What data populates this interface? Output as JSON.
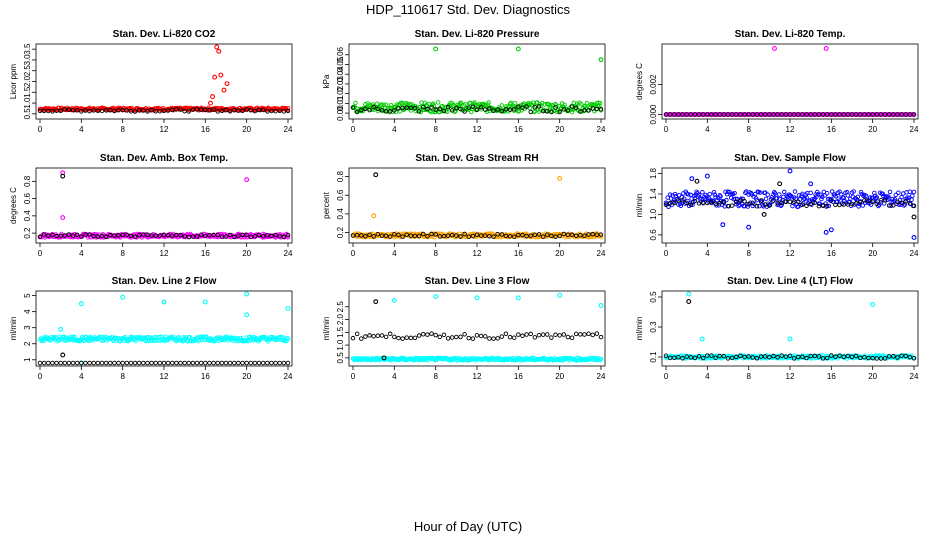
{
  "title": "HDP_110617  Std. Dev. Diagnostics",
  "xlabel": "Hour of Day (UTC)",
  "chart_data": [
    {
      "type": "scatter",
      "title": "Stan. Dev. Li-820 CO2",
      "ylabel": "Licor ppm",
      "xlim": [
        0,
        24
      ],
      "ylim": [
        0.4,
        3.6
      ],
      "xticks": [
        0,
        4,
        8,
        12,
        16,
        20,
        24
      ],
      "yticks": [
        "0.5",
        "1.0",
        "1.5",
        "2.0",
        "2.5",
        "3.0",
        "3.5"
      ],
      "series": [
        {
          "color": "#ff0000",
          "pattern": {
            "base": 0.72,
            "amp": 0.06
          },
          "x": [
            16.5,
            16.7,
            16.9,
            17.1,
            17.3,
            17.5,
            17.8,
            18.1
          ],
          "y": [
            1.0,
            1.3,
            2.2,
            3.6,
            3.4,
            2.3,
            1.6,
            1.9
          ]
        },
        {
          "color": "#000000",
          "pattern": {
            "base": 0.66,
            "amp": 0.05
          },
          "x": [],
          "y": []
        }
      ]
    },
    {
      "type": "scatter",
      "title": "Stan. Dev. Li-820 Pressure",
      "ylabel": "kPa",
      "xlim": [
        0,
        24
      ],
      "ylim": [
        -0.003,
        0.068
      ],
      "xticks": [
        0,
        4,
        8,
        12,
        16,
        20,
        24
      ],
      "yticks": [
        "0.00",
        "0.01",
        "0.02",
        "0.03",
        "0.04",
        "0.05",
        "0.06"
      ],
      "series": [
        {
          "color": "#00cc00",
          "pattern": {
            "base": 0.006,
            "amp": 0.005
          },
          "x": [
            8,
            16,
            24
          ],
          "y": [
            0.066,
            0.066,
            0.055
          ]
        },
        {
          "color": "#000000",
          "pattern": {
            "base": 0.004,
            "amp": 0.003
          },
          "x": [],
          "y": []
        }
      ]
    },
    {
      "type": "scatter",
      "title": "Stan. Dev. Li-820 Temp.",
      "ylabel": "degrees C",
      "xlim": [
        0,
        24
      ],
      "ylim": [
        -0.0001,
        0.0045
      ],
      "xticks": [
        0,
        4,
        8,
        12,
        16,
        20,
        24
      ],
      "yticks": [
        "0.000",
        "0.002"
      ],
      "series": [
        {
          "color": "#ff00ff",
          "pattern": {
            "base": 0.0,
            "amp": 0.0
          },
          "x": [
            10.5,
            15.5
          ],
          "y": [
            0.0044,
            0.0044
          ]
        },
        {
          "color": "#000000",
          "pattern": {
            "base": 0.0,
            "amp": 0.0
          },
          "x": [],
          "y": []
        }
      ]
    },
    {
      "type": "scatter",
      "title": "Stan. Dev. Amb. Box Temp.",
      "ylabel": "degrees C",
      "xlim": [
        0,
        24
      ],
      "ylim": [
        0.12,
        0.92
      ],
      "xticks": [
        0,
        4,
        8,
        12,
        16,
        20,
        24
      ],
      "yticks": [
        "0.2",
        "0.4",
        "0.6",
        "0.8"
      ],
      "series": [
        {
          "color": "#ff00ff",
          "pattern": {
            "base": 0.17,
            "amp": 0.02
          },
          "x": [
            2.2,
            2.2,
            20.0
          ],
          "y": [
            0.9,
            0.38,
            0.82
          ]
        },
        {
          "color": "#000000",
          "pattern": {
            "base": 0.17,
            "amp": 0.015
          },
          "x": [
            2.2
          ],
          "y": [
            0.86
          ]
        }
      ]
    },
    {
      "type": "scatter",
      "title": "Stan. Dev. Gas Stream RH",
      "ylabel": "percent",
      "xlim": [
        0,
        24
      ],
      "ylim": [
        0.12,
        0.86
      ],
      "xticks": [
        0,
        4,
        8,
        12,
        16,
        20,
        24
      ],
      "yticks": [
        "0.2",
        "0.4",
        "0.6",
        "0.8"
      ],
      "series": [
        {
          "color": "#ffa500",
          "pattern": {
            "base": 0.17,
            "amp": 0.02
          },
          "x": [
            2.0,
            20.0
          ],
          "y": [
            0.38,
            0.78
          ]
        },
        {
          "color": "#000000",
          "pattern": {
            "base": 0.17,
            "amp": 0.015
          },
          "x": [
            2.2
          ],
          "y": [
            0.82
          ]
        }
      ]
    },
    {
      "type": "scatter",
      "title": "Stan. Dev. Sample Flow",
      "ylabel": "ml/min",
      "xlim": [
        0,
        24
      ],
      "ylim": [
        0.5,
        1.85
      ],
      "xticks": [
        0,
        4,
        8,
        12,
        16,
        20,
        24
      ],
      "yticks": [
        "0.6",
        "1.0",
        "1.4",
        "1.8"
      ],
      "series": [
        {
          "color": "#0000ff",
          "pattern": {
            "base": 1.3,
            "amp": 0.15
          },
          "x": [
            2.5,
            4.0,
            5.5,
            8.0,
            12.0,
            14.0,
            15.5,
            16.0,
            24.0
          ],
          "y": [
            1.7,
            1.75,
            0.8,
            0.75,
            1.85,
            1.6,
            0.65,
            0.7,
            0.55
          ]
        },
        {
          "color": "#000000",
          "pattern": {
            "base": 1.22,
            "amp": 0.06
          },
          "x": [
            3.0,
            9.5,
            11.0,
            24.0
          ],
          "y": [
            1.65,
            1.0,
            1.6,
            0.95
          ]
        }
      ]
    },
    {
      "type": "scatter",
      "title": "Stan. Dev. Line 2 Flow",
      "ylabel": "ml/min",
      "xlim": [
        0,
        24
      ],
      "ylim": [
        0.8,
        5.1
      ],
      "xticks": [
        0,
        4,
        8,
        12,
        16,
        20,
        24
      ],
      "yticks": [
        "1",
        "2",
        "3",
        "4",
        "5"
      ],
      "series": [
        {
          "color": "#00ffff",
          "pattern": {
            "base": 2.3,
            "amp": 0.15
          },
          "x": [
            4.0,
            8.0,
            12.0,
            16.0,
            20.0,
            20.0,
            24.0,
            2.0,
            4.0
          ],
          "y": [
            4.5,
            4.9,
            4.6,
            4.6,
            5.1,
            3.8,
            4.2,
            2.9,
            0.6
          ]
        },
        {
          "color": "#000000",
          "pattern": {
            "base": 0.7,
            "amp": 0.05
          },
          "x": [
            2.2
          ],
          "y": [
            1.3
          ]
        }
      ]
    },
    {
      "type": "scatter",
      "title": "Stan. Dev. Line 3 Flow",
      "ylabel": "ml/min",
      "xlim": [
        0,
        24
      ],
      "ylim": [
        0.3,
        3.0
      ],
      "xticks": [
        0,
        4,
        8,
        12,
        16,
        20,
        24
      ],
      "yticks": [
        "0.5",
        "1.0",
        "1.5",
        "2.0",
        "2.5"
      ],
      "series": [
        {
          "color": "#00ffff",
          "pattern": {
            "base": 0.45,
            "amp": 0.05
          },
          "x": [
            4.0,
            8.0,
            12.0,
            16.0,
            20.0,
            24.0
          ],
          "y": [
            2.75,
            2.9,
            2.85,
            2.85,
            2.95,
            2.55
          ]
        },
        {
          "color": "#000000",
          "pattern": {
            "base": 1.35,
            "amp": 0.1
          },
          "x": [
            2.2,
            3.0
          ],
          "y": [
            2.7,
            0.5
          ]
        }
      ]
    },
    {
      "type": "scatter",
      "title": "Stan. Dev. Line 4 (LT) Flow",
      "ylabel": "ml/min",
      "xlim": [
        0,
        24
      ],
      "ylim": [
        0.06,
        0.52
      ],
      "xticks": [
        0,
        4,
        8,
        12,
        16,
        20,
        24
      ],
      "yticks": [
        "0.1",
        "0.3",
        "0.5"
      ],
      "series": [
        {
          "color": "#00ffff",
          "pattern": {
            "base": 0.1,
            "amp": 0.01
          },
          "x": [
            2.2,
            3.5,
            12.0,
            20.0
          ],
          "y": [
            0.52,
            0.22,
            0.22,
            0.45
          ]
        },
        {
          "color": "#000000",
          "pattern": {
            "base": 0.1,
            "amp": 0.01
          },
          "x": [
            2.2
          ],
          "y": [
            0.47
          ]
        }
      ]
    }
  ]
}
